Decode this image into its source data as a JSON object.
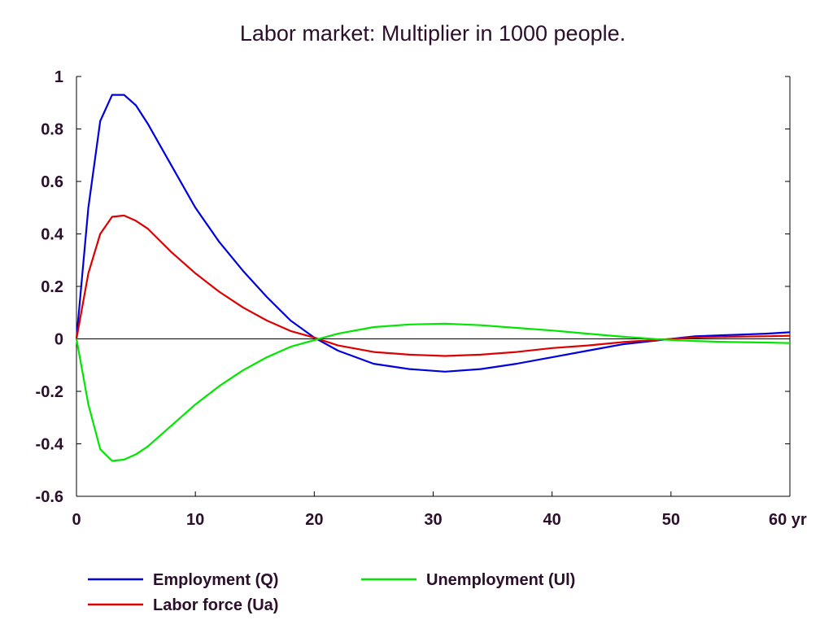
{
  "chart_data": {
    "type": "line",
    "title": "Labor market: Multiplier in 1000 people.",
    "xlabel": "",
    "ylabel": "",
    "xlim": [
      0,
      60
    ],
    "ylim": [
      -0.6,
      1
    ],
    "x_ticks": [
      0,
      10,
      20,
      30,
      40,
      50,
      60
    ],
    "x_tick_labels": [
      "0",
      "10",
      "20",
      "30",
      "40",
      "50",
      "60 yr"
    ],
    "y_ticks": [
      1,
      0.8,
      0.6,
      0.4,
      0.2,
      0,
      -0.2,
      -0.4,
      -0.6
    ],
    "y_tick_labels": [
      "1",
      "0.8",
      "0.6",
      "0.4",
      "0.2",
      "0",
      "-0.2",
      "-0.4",
      "-0.6"
    ],
    "grid": false,
    "zero_line": true,
    "legend_position": "bottom",
    "series": [
      {
        "name": "Employment (Q)",
        "color": "#0000dd",
        "x": [
          0,
          1,
          2,
          3,
          4,
          5,
          6,
          7,
          8,
          10,
          12,
          14,
          16,
          18,
          20,
          22,
          25,
          28,
          31,
          34,
          37,
          40,
          43,
          46,
          49,
          52,
          55,
          58,
          60
        ],
        "values": [
          0,
          0.5,
          0.83,
          0.93,
          0.93,
          0.89,
          0.82,
          0.74,
          0.66,
          0.5,
          0.37,
          0.26,
          0.16,
          0.07,
          0.005,
          -0.045,
          -0.095,
          -0.115,
          -0.125,
          -0.115,
          -0.095,
          -0.07,
          -0.045,
          -0.02,
          -0.005,
          0.01,
          0.015,
          0.02,
          0.025
        ]
      },
      {
        "name": "Labor force (Ua)",
        "color": "#dd0000",
        "x": [
          0,
          1,
          2,
          3,
          4,
          5,
          6,
          8,
          10,
          12,
          14,
          16,
          18,
          20,
          22,
          25,
          28,
          31,
          34,
          37,
          40,
          43,
          46,
          49,
          52,
          55,
          58,
          60
        ],
        "values": [
          0,
          0.25,
          0.4,
          0.465,
          0.47,
          0.45,
          0.42,
          0.33,
          0.25,
          0.18,
          0.12,
          0.07,
          0.03,
          0.005,
          -0.025,
          -0.05,
          -0.06,
          -0.065,
          -0.06,
          -0.05,
          -0.035,
          -0.025,
          -0.012,
          -0.003,
          0.005,
          0.008,
          0.01,
          0.012
        ]
      },
      {
        "name": "Unemployment (Ul)",
        "color": "#00e600",
        "x": [
          0,
          1,
          2,
          3,
          4,
          5,
          6,
          8,
          10,
          12,
          14,
          16,
          18,
          20,
          22,
          25,
          28,
          31,
          34,
          37,
          40,
          43,
          46,
          49,
          52,
          55,
          58,
          60
        ],
        "values": [
          0,
          -0.25,
          -0.42,
          -0.465,
          -0.46,
          -0.44,
          -0.41,
          -0.33,
          -0.25,
          -0.18,
          -0.12,
          -0.07,
          -0.03,
          -0.005,
          0.02,
          0.045,
          0.055,
          0.058,
          0.052,
          0.042,
          0.032,
          0.02,
          0.008,
          -0.002,
          -0.008,
          -0.012,
          -0.014,
          -0.016
        ]
      }
    ]
  }
}
